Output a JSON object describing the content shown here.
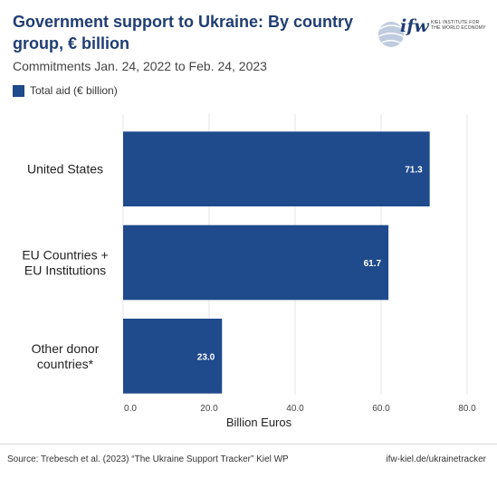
{
  "header": {
    "title": "Government support to Ukraine: By country group, € billion",
    "subtitle": "Commitments Jan. 24, 2022 to Feb. 24, 2023"
  },
  "logo": {
    "word": "ifw",
    "sub": "KIEL INSTITUTE FOR THE WORLD ECONOMY"
  },
  "colors": {
    "bar": "#1f4a8c",
    "title": "#1f3d73",
    "grid": "#e3e3e3"
  },
  "chart_data": {
    "type": "bar",
    "orientation": "horizontal",
    "categories": [
      "United States",
      "EU Countries + EU Institutions",
      "Other donor countries*"
    ],
    "category_lines": [
      [
        "United States"
      ],
      [
        "EU Countries +",
        "EU Institutions"
      ],
      [
        "Other donor",
        "countries*"
      ]
    ],
    "series": [
      {
        "name": "Total aid (€ billion)",
        "values": [
          71.3,
          61.7,
          23.0
        ]
      }
    ],
    "value_labels": [
      "71.3",
      "61.7",
      "23.0"
    ],
    "xlabel": "Billion Euros",
    "xlim": [
      0,
      80
    ],
    "xticks": [
      0,
      20,
      40,
      60,
      80
    ],
    "xtick_labels": [
      "0.0",
      "20.0",
      "40.0",
      "60.0",
      "80.0"
    ],
    "grid": true,
    "legend": "top-left"
  },
  "footer": {
    "source": "Source: Trebesch et al. (2023) “The Ukraine Support Tracker” Kiel WP",
    "url": "ifw-kiel.de/ukrainetracker"
  }
}
